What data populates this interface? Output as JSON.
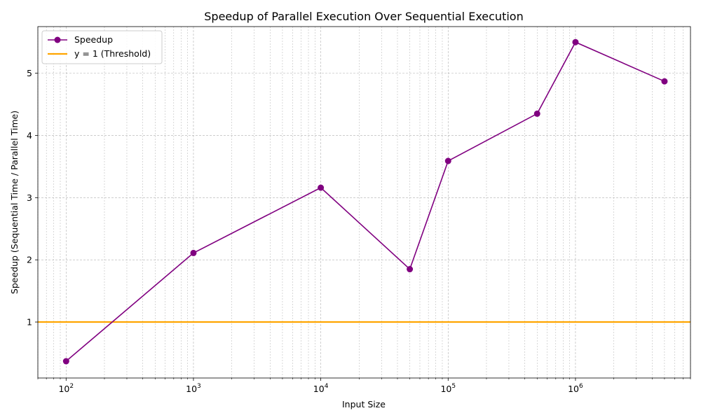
{
  "chart_data": {
    "type": "line",
    "title": "Speedup of Parallel Execution Over Sequential Execution",
    "xlabel": "Input Size",
    "ylabel": "Speedup (Sequential Time / Parallel Time)",
    "xscale": "log",
    "xlim": [
      60,
      8000000
    ],
    "ylim": [
      0.1,
      5.75
    ],
    "x_tick_labels": [
      {
        "base": "10",
        "exp": "2",
        "value": 100
      },
      {
        "base": "10",
        "exp": "3",
        "value": 1000
      },
      {
        "base": "10",
        "exp": "4",
        "value": 10000
      },
      {
        "base": "10",
        "exp": "5",
        "value": 100000
      },
      {
        "base": "10",
        "exp": "6",
        "value": 1000000
      }
    ],
    "y_ticks": [
      1,
      2,
      3,
      4,
      5
    ],
    "grid": true,
    "legend_position": "top-left",
    "series": [
      {
        "name": "Speedup",
        "color": "#800080",
        "marker": "circle",
        "x": [
          100,
          1000,
          10000,
          50000,
          100000,
          500000,
          1000000,
          5000000
        ],
        "y": [
          0.37,
          2.11,
          3.16,
          1.85,
          3.59,
          4.35,
          5.5,
          4.87
        ]
      }
    ],
    "reference_lines": [
      {
        "name": "y = 1 (Threshold)",
        "orientation": "horizontal",
        "value": 1,
        "color": "#FFA500"
      }
    ]
  }
}
